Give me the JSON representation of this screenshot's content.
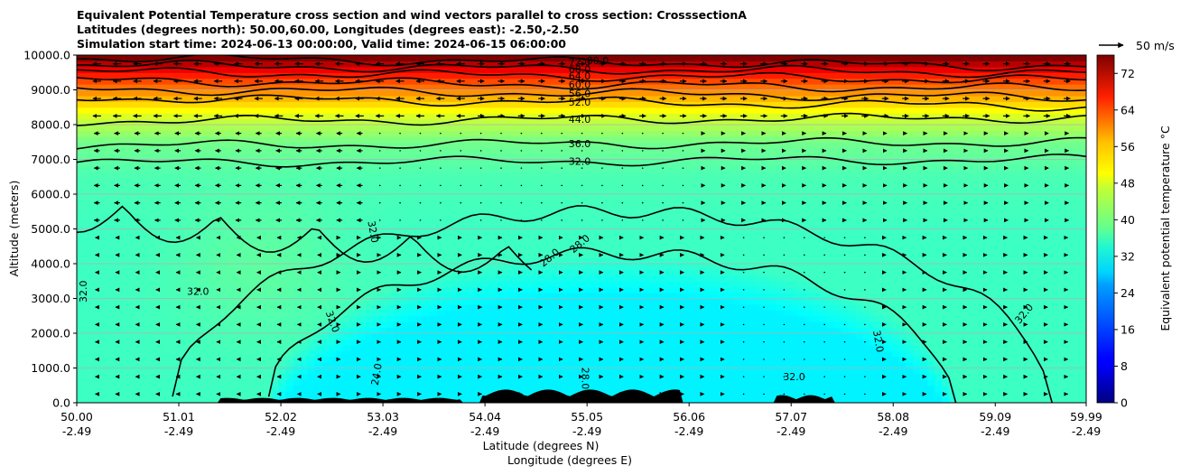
{
  "chart_data": {
    "type": "cross-section-contourf",
    "title_lines": [
      "Equivalent Potential Temperature cross section and wind vectors parallel to cross section: CrosssectionA",
      "Latitudes (degrees north): 50.00,60.00, Longitudes (degrees east): -2.50,-2.50",
      "Simulation start time: 2024-06-13 00:00:00, Valid time: 2024-06-15 06:00:00"
    ],
    "ylabel": "Altitude (meters)",
    "xlabel_lines": [
      "Latitude (degrees N)",
      "Longitude (degrees E)"
    ],
    "ylim": [
      0,
      10000
    ],
    "y_ticks": [
      "0.0",
      "1000.0",
      "2000.0",
      "3000.0",
      "4000.0",
      "5000.0",
      "6000.0",
      "7000.0",
      "8000.0",
      "9000.0",
      "10000.0"
    ],
    "x_ticks": [
      {
        "lat": "50.00",
        "lon": "-2.49"
      },
      {
        "lat": "51.01",
        "lon": "-2.49"
      },
      {
        "lat": "52.02",
        "lon": "-2.49"
      },
      {
        "lat": "53.03",
        "lon": "-2.49"
      },
      {
        "lat": "54.04",
        "lon": "-2.49"
      },
      {
        "lat": "55.05",
        "lon": "-2.49"
      },
      {
        "lat": "56.06",
        "lon": "-2.49"
      },
      {
        "lat": "57.07",
        "lon": "-2.49"
      },
      {
        "lat": "58.08",
        "lon": "-2.49"
      },
      {
        "lat": "59.09",
        "lon": "-2.49"
      },
      {
        "lat": "59.99",
        "lon": "-2.49"
      }
    ],
    "grid": "horizontal",
    "colorbar": {
      "label": "Equivalent potential temperature $^\\circ$C",
      "label_display": "Equivalent potential temperature °C",
      "range": [
        0,
        76
      ],
      "ticks": [
        "0",
        "8",
        "16",
        "24",
        "32",
        "40",
        "48",
        "56",
        "64",
        "72"
      ],
      "colormap": "jet"
    },
    "quiver_key": "50 m/s",
    "contour_labels": [
      "72.0",
      "68.0",
      "64.0",
      "60.0",
      "56.0",
      "52.0",
      "44.0",
      "36.0",
      "32.0",
      "28.0",
      "24.0",
      "80.0"
    ],
    "contour_levels_upper": [
      {
        "label": "72.0",
        "alt": 9800
      },
      {
        "label": "68.0",
        "alt": 9600
      },
      {
        "label": "64.0",
        "alt": 9400
      },
      {
        "label": "60.0",
        "alt": 9150
      },
      {
        "label": "56.0",
        "alt": 8900
      },
      {
        "label": "52.0",
        "alt": 8650
      },
      {
        "label": "44.0",
        "alt": 8150
      },
      {
        "label": "36.0",
        "alt": 7450
      },
      {
        "label": "32.0",
        "alt": 6950
      }
    ],
    "top_label": "80.0",
    "theta_e_profile": [
      {
        "alt": 0,
        "theta": 33
      },
      {
        "alt": 2000,
        "theta": 33
      },
      {
        "alt": 5000,
        "theta": 33
      },
      {
        "alt": 6500,
        "theta": 34
      },
      {
        "alt": 7500,
        "theta": 37
      },
      {
        "alt": 8200,
        "theta": 44
      },
      {
        "alt": 8700,
        "theta": 52
      },
      {
        "alt": 9200,
        "theta": 60
      },
      {
        "alt": 9600,
        "theta": 68
      },
      {
        "alt": 10000,
        "theta": 78
      }
    ],
    "cold_dome": {
      "center_lat": 55.3,
      "peak_alt": 4300,
      "half_width_lat": 3.4,
      "theta_core": 27
    }
  }
}
